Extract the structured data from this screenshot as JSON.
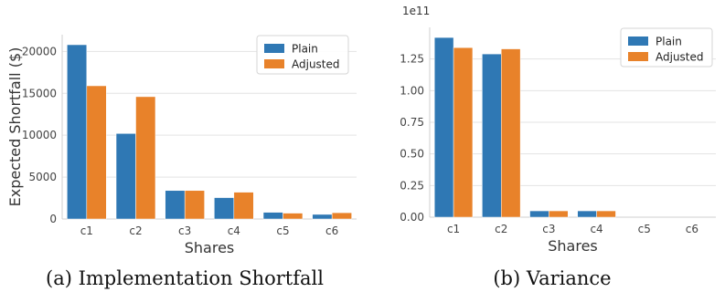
{
  "colors": {
    "plain": "#2f78b4",
    "adjusted": "#e8822a",
    "grid": "#e3e3e3",
    "axis": "#cfcfcf"
  },
  "legend": [
    "Plain",
    "Adjusted"
  ],
  "captions": [
    "(a) Implementation Shortfall",
    "(b) Variance"
  ],
  "chart_data": [
    {
      "type": "bar",
      "title": "",
      "xlabel": "Shares",
      "ylabel": "Expected Shortfall ($)",
      "categories": [
        "c1",
        "c2",
        "c3",
        "c4",
        "c5",
        "c6"
      ],
      "series": [
        {
          "name": "Plain",
          "values": [
            20800,
            10200,
            3400,
            2550,
            800,
            550
          ]
        },
        {
          "name": "Adjusted",
          "values": [
            15900,
            14600,
            3400,
            3200,
            700,
            750
          ]
        }
      ],
      "ylim": [
        0,
        22000
      ],
      "yticks": [
        0,
        5000,
        10000,
        15000,
        20000
      ],
      "ytick_labels": [
        "0",
        "5000",
        "10000",
        "15000",
        "20000"
      ],
      "legend_position": "upper right",
      "grid": "horizontal"
    },
    {
      "type": "bar",
      "title": "",
      "xlabel": "Shares",
      "ylabel": "",
      "offset_label": "1e11",
      "categories": [
        "c1",
        "c2",
        "c3",
        "c4",
        "c5",
        "c6"
      ],
      "series": [
        {
          "name": "Plain",
          "values": [
            1.42,
            1.29,
            0.05,
            0.05,
            0.0,
            0.0
          ]
        },
        {
          "name": "Adjusted",
          "values": [
            1.34,
            1.33,
            0.05,
            0.05,
            0.0,
            0.0
          ]
        }
      ],
      "ylim": [
        0,
        1.5
      ],
      "yticks": [
        0,
        0.25,
        0.5,
        0.75,
        1.0,
        1.25
      ],
      "ytick_labels": [
        "0.00",
        "0.25",
        "0.50",
        "0.75",
        "1.00",
        "1.25"
      ],
      "legend_position": "upper right",
      "grid": "horizontal"
    }
  ]
}
